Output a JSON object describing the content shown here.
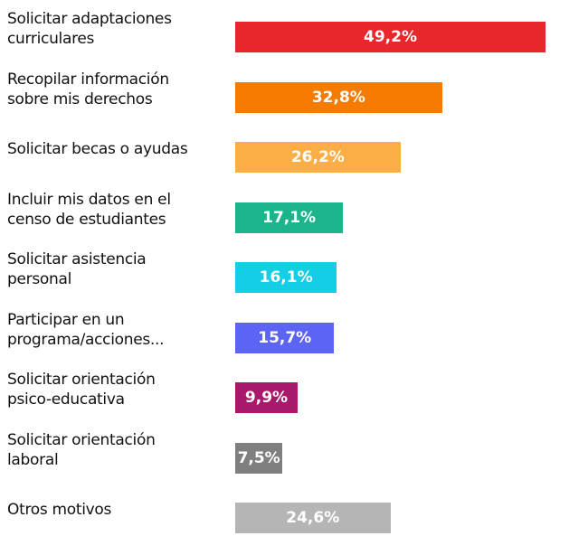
{
  "chart_data": {
    "type": "bar",
    "categories": [
      "Solicitar adaptaciones\ncurriculares",
      "Recopilar información\nsobre mis derechos",
      "Solicitar becas o ayudas",
      "Incluir mis datos en el\ncenso de estudiantes",
      "Solicitar asistencia\npersonal",
      "Participar en un\nprograma/acciones...",
      "Solicitar orientación\npsico-educativa",
      "Solicitar orientación\nlaboral",
      "Otros motivos"
    ],
    "values": [
      49.2,
      32.8,
      26.2,
      17.1,
      16.1,
      15.7,
      9.9,
      7.5,
      24.6
    ],
    "value_labels": [
      "49,2%",
      "32,8%",
      "26,2%",
      "17,1%",
      "16,1%",
      "15,7%",
      "9,9%",
      "7,5%",
      "24,6%"
    ],
    "colors": [
      "#e8262b",
      "#f57c00",
      "#fbae45",
      "#1cb58b",
      "#14cde6",
      "#5b64f5",
      "#a8196b",
      "#7f7f7f",
      "#b5b5b5"
    ]
  }
}
